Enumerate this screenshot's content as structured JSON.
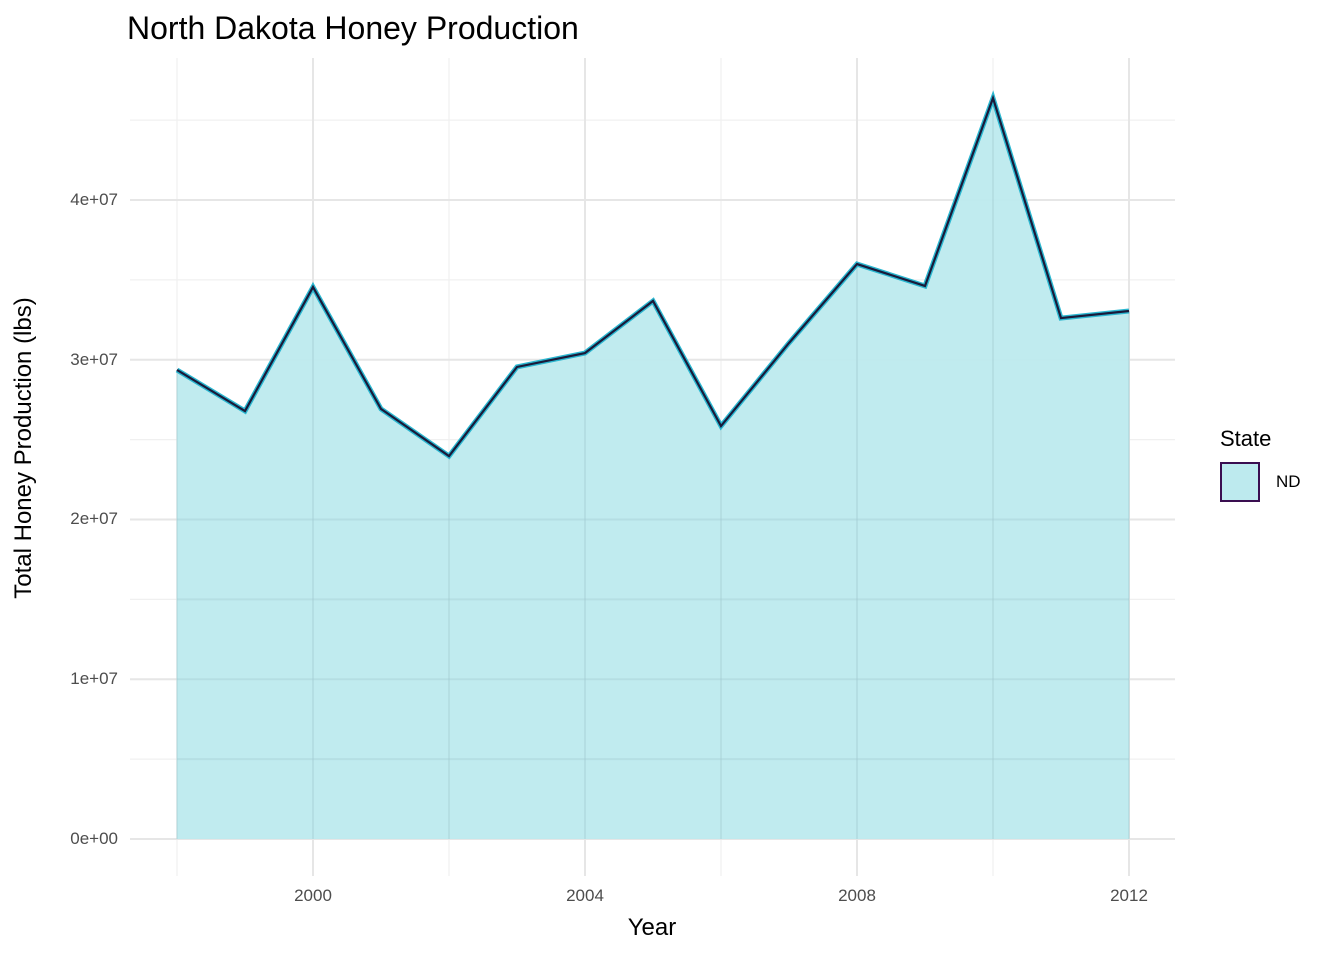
{
  "chart_data": {
    "type": "area",
    "title": "North Dakota Honey Production",
    "xlabel": "Year",
    "ylabel": "Total Honey Production (lbs)",
    "x": [
      1998,
      1999,
      2000,
      2001,
      2002,
      2003,
      2004,
      2005,
      2006,
      2007,
      2008,
      2009,
      2010,
      2011,
      2012
    ],
    "series": [
      {
        "name": "ND",
        "values": [
          29360000,
          26790000,
          34550000,
          26920000,
          23970000,
          29550000,
          30420000,
          33680000,
          25850000,
          31050000,
          35990000,
          34620000,
          46380000,
          32610000,
          33050000
        ]
      }
    ],
    "x_ticks": [
      "2000",
      "2004",
      "2008",
      "2012"
    ],
    "y_ticks": [
      "0e+00",
      "1e+07",
      "2e+07",
      "3e+07",
      "4e+07"
    ],
    "xlim": [
      1997.7,
      2012.7
    ],
    "ylim": [
      -2300000,
      48700000
    ],
    "grid": true,
    "legend_position": "right",
    "legend_title": "State",
    "legend_entries": [
      "ND"
    ],
    "colors": {
      "fill": "#bdeaee",
      "line_outer": "#2bb7d0",
      "line_inner": "#1a1a3a",
      "grid_major": "#e6e6e6",
      "grid_minor": "#f0f0f0"
    }
  },
  "labels": {
    "title": "North Dakota Honey Production",
    "xlabel": "Year",
    "ylabel": "Total Honey Production (lbs)",
    "legend_title": "State",
    "legend_label": "ND",
    "ytick_0": "0e+00",
    "ytick_1": "1e+07",
    "ytick_2": "2e+07",
    "ytick_3": "3e+07",
    "ytick_4": "4e+07",
    "xtick_0": "2000",
    "xtick_1": "2004",
    "xtick_2": "2008",
    "xtick_3": "2012"
  }
}
